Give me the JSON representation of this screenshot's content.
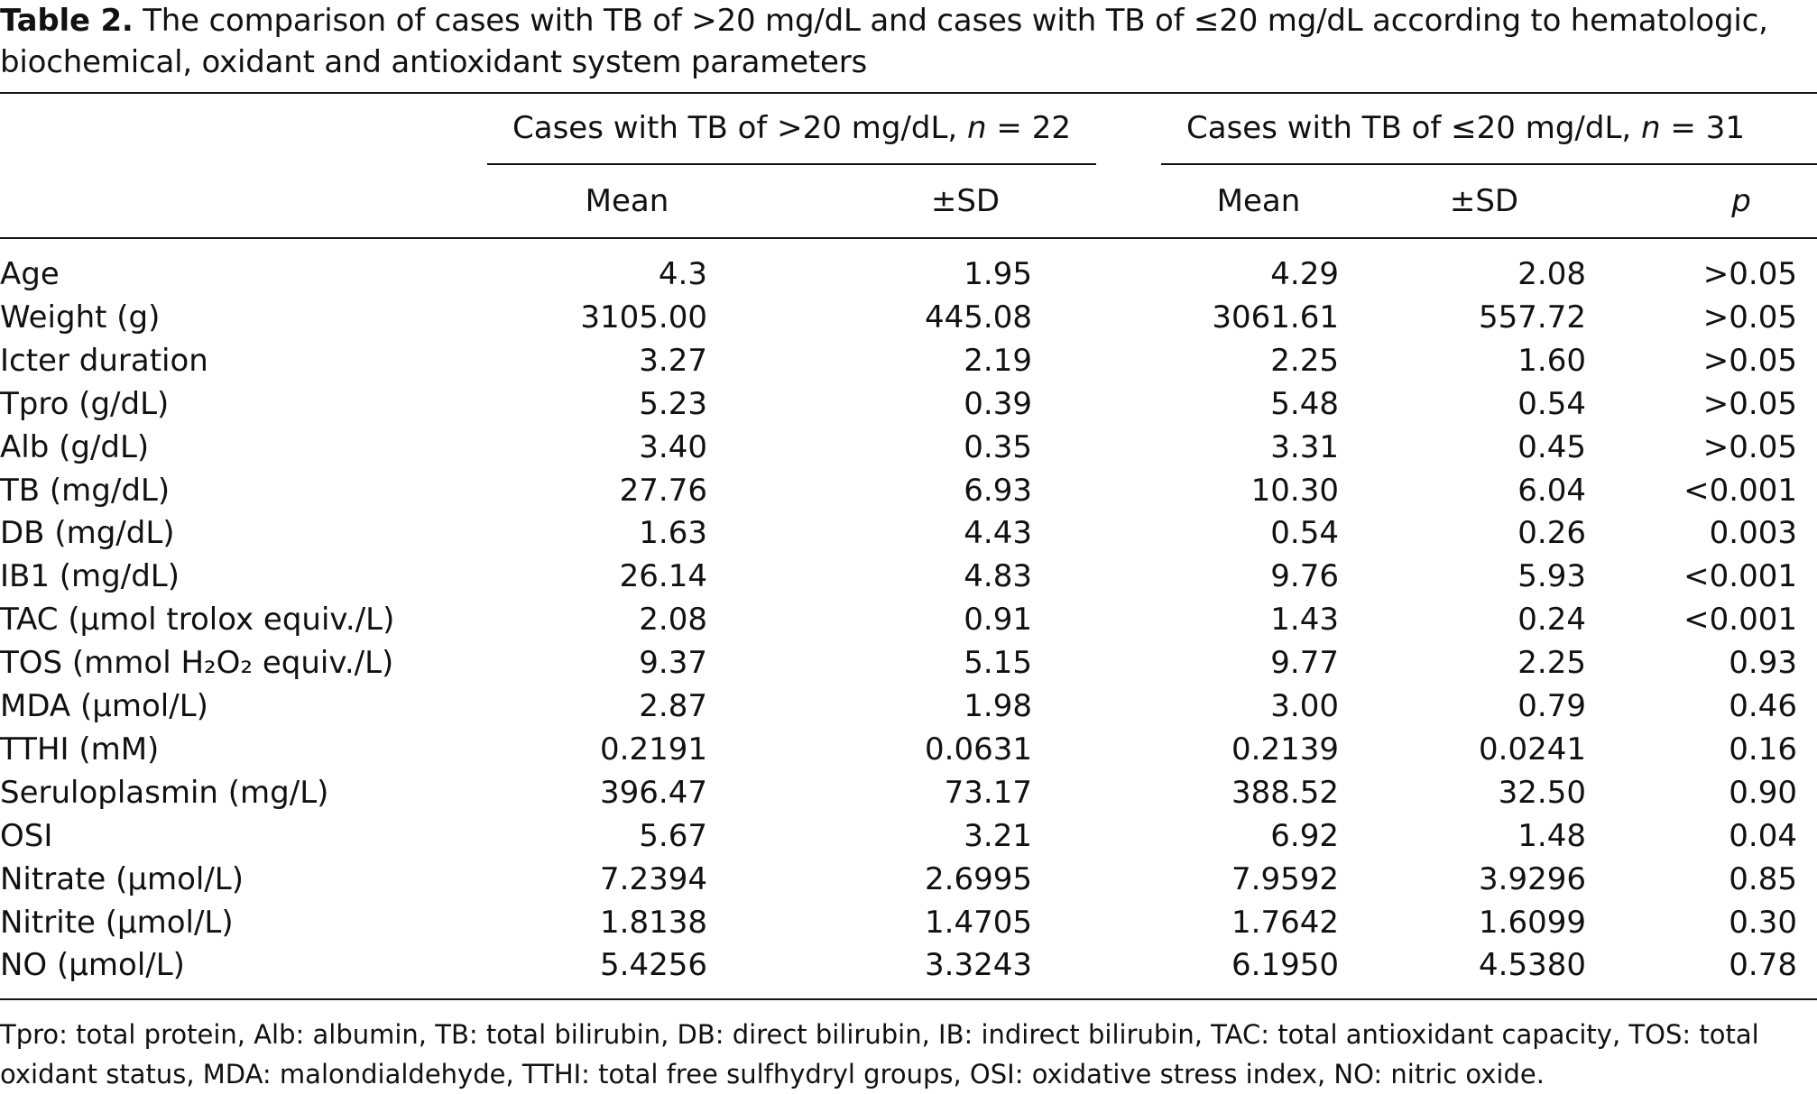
{
  "caption": {
    "label": "Table 2.",
    "text": " The comparison of cases with TB of >20 mg/dL and cases with TB of ≤20 mg/dL according to hematologic, biochemical, oxidant and antioxidant system parameters"
  },
  "header": {
    "group1": "Cases with TB of >20 mg/dL, ",
    "group1_n_label": "n",
    "group1_n_value": " = 22",
    "group2": "Cases with TB of ≤20 mg/dL, ",
    "group2_n_label": "n",
    "group2_n_value": " = 31",
    "mean1": "Mean",
    "sd1": "±SD",
    "mean2": "Mean",
    "sd2": "±SD",
    "p": "p"
  },
  "rows": [
    {
      "label": "Age",
      "m1": "4.3",
      "sd1": "1.95",
      "m2": "4.29",
      "sd2": "2.08",
      "p": ">0.05"
    },
    {
      "label": "Weight (g)",
      "m1": "3105.00",
      "sd1": "445.08",
      "m2": "3061.61",
      "sd2": "557.72",
      "p": ">0.05"
    },
    {
      "label": "Icter duration",
      "m1": "3.27",
      "sd1": "2.19",
      "m2": "2.25",
      "sd2": "1.60",
      "p": ">0.05"
    },
    {
      "label": "Tpro (g/dL)",
      "m1": "5.23",
      "sd1": "0.39",
      "m2": "5.48",
      "sd2": "0.54",
      "p": ">0.05"
    },
    {
      "label": "Alb (g/dL)",
      "m1": "3.40",
      "sd1": "0.35",
      "m2": "3.31",
      "sd2": "0.45",
      "p": ">0.05"
    },
    {
      "label": "TB (mg/dL)",
      "m1": "27.76",
      "sd1": "6.93",
      "m2": "10.30",
      "sd2": "6.04",
      "p": "<0.001"
    },
    {
      "label": "DB (mg/dL)",
      "m1": "1.63",
      "sd1": "4.43",
      "m2": "0.54",
      "sd2": "0.26",
      "p": "0.003"
    },
    {
      "label": "IB1 (mg/dL)",
      "m1": "26.14",
      "sd1": "4.83",
      "m2": "9.76",
      "sd2": "5.93",
      "p": "<0.001"
    },
    {
      "label": "TAC (μmol trolox equiv./L)",
      "m1": "2.08",
      "sd1": "0.91",
      "m2": "1.43",
      "sd2": "0.24",
      "p": "<0.001"
    },
    {
      "label": "TOS (mmol H₂O₂ equiv./L)",
      "m1": "9.37",
      "sd1": "5.15",
      "m2": "9.77",
      "sd2": "2.25",
      "p": "0.93"
    },
    {
      "label": "MDA (μmol/L)",
      "m1": "2.87",
      "sd1": "1.98",
      "m2": "3.00",
      "sd2": "0.79",
      "p": "0.46"
    },
    {
      "label": "TTHI (mM)",
      "m1": "0.2191",
      "sd1": "0.0631",
      "m2": "0.2139",
      "sd2": "0.0241",
      "p": "0.16"
    },
    {
      "label": "Seruloplasmin (mg/L)",
      "m1": "396.47",
      "sd1": "73.17",
      "m2": "388.52",
      "sd2": "32.50",
      "p": "0.90"
    },
    {
      "label": "OSI",
      "m1": "5.67",
      "sd1": "3.21",
      "m2": "6.92",
      "sd2": "1.48",
      "p": "0.04"
    },
    {
      "label": "Nitrate (μmol/L)",
      "m1": "7.2394",
      "sd1": "2.6995",
      "m2": "7.9592",
      "sd2": "3.9296",
      "p": "0.85"
    },
    {
      "label": "Nitrite (μmol/L)",
      "m1": "1.8138",
      "sd1": "1.4705",
      "m2": "1.7642",
      "sd2": "1.6099",
      "p": "0.30"
    },
    {
      "label": "NO (μmol/L)",
      "m1": "5.4256",
      "sd1": "3.3243",
      "m2": "6.1950",
      "sd2": "4.5380",
      "p": "0.78"
    }
  ],
  "footnote": "Tpro: total protein, Alb: albumin, TB: total bilirubin, DB: direct bilirubin, IB: indirect bilirubin, TAC: total antioxidant capacity, TOS: total oxidant status, MDA: malondialdehyde, TTHI: total free sulfhydryl groups, OSI: oxidative stress index, NO: nitric oxide."
}
